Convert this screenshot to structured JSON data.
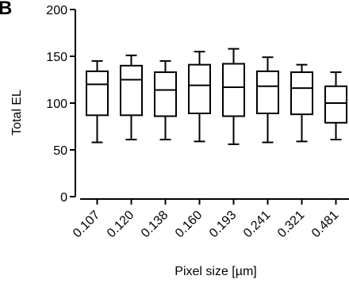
{
  "panel_label": "B",
  "chart_data": {
    "type": "box",
    "xlabel": "Pixel size [µm]",
    "ylabel": "Total EL",
    "ylim": [
      0,
      200
    ],
    "yticks": [
      0,
      50,
      100,
      150,
      200
    ],
    "grid": false,
    "categories": [
      "0.107",
      "0.120",
      "0.138",
      "0.160",
      "0.193",
      "0.241",
      "0.321",
      "0.481"
    ],
    "boxes": [
      {
        "min": 58,
        "q1": 87,
        "median": 120,
        "q3": 134,
        "max": 145
      },
      {
        "min": 61,
        "q1": 87,
        "median": 125,
        "q3": 140,
        "max": 151
      },
      {
        "min": 61,
        "q1": 86,
        "median": 114,
        "q3": 133,
        "max": 145
      },
      {
        "min": 59,
        "q1": 89,
        "median": 119,
        "q3": 141,
        "max": 155
      },
      {
        "min": 56,
        "q1": 86,
        "median": 117,
        "q3": 142,
        "max": 158
      },
      {
        "min": 58,
        "q1": 89,
        "median": 118,
        "q3": 134,
        "max": 149
      },
      {
        "min": 59,
        "q1": 88,
        "median": 116,
        "q3": 133,
        "max": 141
      },
      {
        "min": 61,
        "q1": 79,
        "median": 100,
        "q3": 118,
        "max": 133
      }
    ]
  }
}
